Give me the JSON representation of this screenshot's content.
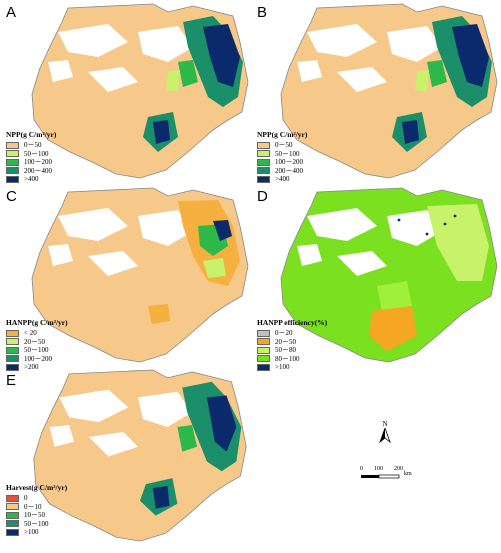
{
  "colors": {
    "background": "#ffffff",
    "outline": "#888888",
    "tan": "#f6c88a",
    "orange": "#f5a623",
    "lightgreen": "#c8f26a",
    "green": "#2db84a",
    "teal": "#1a8f6a",
    "navy": "#0b2a6b",
    "lime": "#7ae020",
    "brightlime": "#9ef03a",
    "grey": "#c0c0c0",
    "red": "#e8503a"
  },
  "panels": [
    {
      "letter": "A",
      "legend": {
        "title": "NPP(g C/m²/yr)",
        "items": [
          {
            "label": "0－50",
            "color": "#f6c88a"
          },
          {
            "label": "50－100",
            "color": "#c8f26a"
          },
          {
            "label": "100－200",
            "color": "#2db84a"
          },
          {
            "label": "200－400",
            "color": "#1a8f6a"
          },
          {
            "label": ">400",
            "color": "#0b2a6b"
          }
        ]
      }
    },
    {
      "letter": "B",
      "legend": {
        "title": "NPP(g C/m²/yr)",
        "items": [
          {
            "label": "0－50",
            "color": "#f6c88a"
          },
          {
            "label": "50－100",
            "color": "#c8f26a"
          },
          {
            "label": "100－200",
            "color": "#2db84a"
          },
          {
            "label": "200－400",
            "color": "#1a8f6a"
          },
          {
            "label": ">400",
            "color": "#0b2a6b"
          }
        ]
      }
    },
    {
      "letter": "C",
      "legend": {
        "title": "HANPP(g C/m²/yr)",
        "items": [
          {
            "label": "< 20",
            "color": "#f5b040"
          },
          {
            "label": "20－50",
            "color": "#c8f26a"
          },
          {
            "label": "50－100",
            "color": "#2db84a"
          },
          {
            "label": "100－200",
            "color": "#1a8f6a"
          },
          {
            "label": ">200",
            "color": "#0b2a6b"
          }
        ]
      }
    },
    {
      "letter": "D",
      "legend": {
        "title": "HANPP efficiency(%)",
        "items": [
          {
            "label": "0－20",
            "color": "#c0c0c0"
          },
          {
            "label": "20－50",
            "color": "#f5a623"
          },
          {
            "label": "50－80",
            "color": "#c8f26a"
          },
          {
            "label": "80－100",
            "color": "#7ae020"
          },
          {
            "label": ">100",
            "color": "#0b2a6b"
          }
        ]
      }
    },
    {
      "letter": "E",
      "legend": {
        "title": "Harvest(g C/m²/yr)",
        "items": [
          {
            "label": "0",
            "color": "#e8503a"
          },
          {
            "label": "0－10",
            "color": "#f6c88a"
          },
          {
            "label": "10－50",
            "color": "#2db84a"
          },
          {
            "label": "50－100",
            "color": "#1a8f6a"
          },
          {
            "label": ">100",
            "color": "#0b2a6b"
          }
        ]
      }
    }
  ],
  "north_arrow": {
    "label": "N"
  },
  "scale_bar": {
    "ticks": [
      "0",
      "100",
      "200"
    ],
    "unit": "km"
  }
}
